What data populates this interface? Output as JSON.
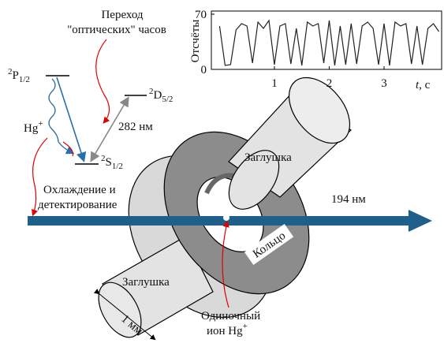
{
  "title_lines": [
    "Переход",
    "\"оптических\" часов"
  ],
  "levels": {
    "p": {
      "sup": "2",
      "main": "P",
      "sub": "1/2"
    },
    "s": {
      "sup": "2",
      "main": "S",
      "sub": "1/2"
    },
    "d": {
      "sup": "2",
      "main": "D",
      "sub": "5/2"
    }
  },
  "ion_label": {
    "main": "Hg",
    "sup": "+"
  },
  "wavelength_282": "282 нм",
  "cooling_lines": [
    "Охлаждение и",
    "детектирование"
  ],
  "wavelength_194": "194 нм",
  "plug_top": "Заглушка",
  "plug_bottom": "Заглушка",
  "ring": "Кольцо",
  "scale": "1 мм",
  "single_ion": {
    "line1": "Одиночный",
    "line2": "ион Hg",
    "sup": "+"
  },
  "chart_data": {
    "type": "line",
    "ylabel": "Отсчёты",
    "xlabel": {
      "var": "t",
      "unit": ", с"
    },
    "x": [
      0,
      0.1,
      0.2,
      0.3,
      0.4,
      0.5,
      0.6,
      0.7,
      0.8,
      0.9,
      1,
      1.1,
      1.2,
      1.3,
      1.4,
      1.5,
      1.6,
      1.7,
      1.8,
      1.9,
      2,
      2.1,
      2.2,
      2.3,
      2.4,
      2.5,
      2.6,
      2.7,
      2.8,
      2.9,
      3,
      3.1,
      3.2,
      3.3,
      3.4,
      3.5,
      3.6,
      3.7,
      3.8,
      3.9,
      4
    ],
    "values": [
      55,
      5,
      6,
      50,
      58,
      55,
      8,
      60,
      52,
      62,
      6,
      55,
      58,
      7,
      52,
      5,
      60,
      55,
      58,
      8,
      62,
      5,
      55,
      6,
      58,
      7,
      55,
      60,
      52,
      6,
      58,
      5,
      60,
      55,
      58,
      7,
      55,
      6,
      52,
      58,
      48
    ],
    "color": "#222222",
    "xlim": [
      -0.15,
      4.05
    ],
    "ylim": [
      0,
      70
    ],
    "xticks": [
      1,
      2,
      3
    ],
    "yticks": [
      0,
      70
    ]
  }
}
